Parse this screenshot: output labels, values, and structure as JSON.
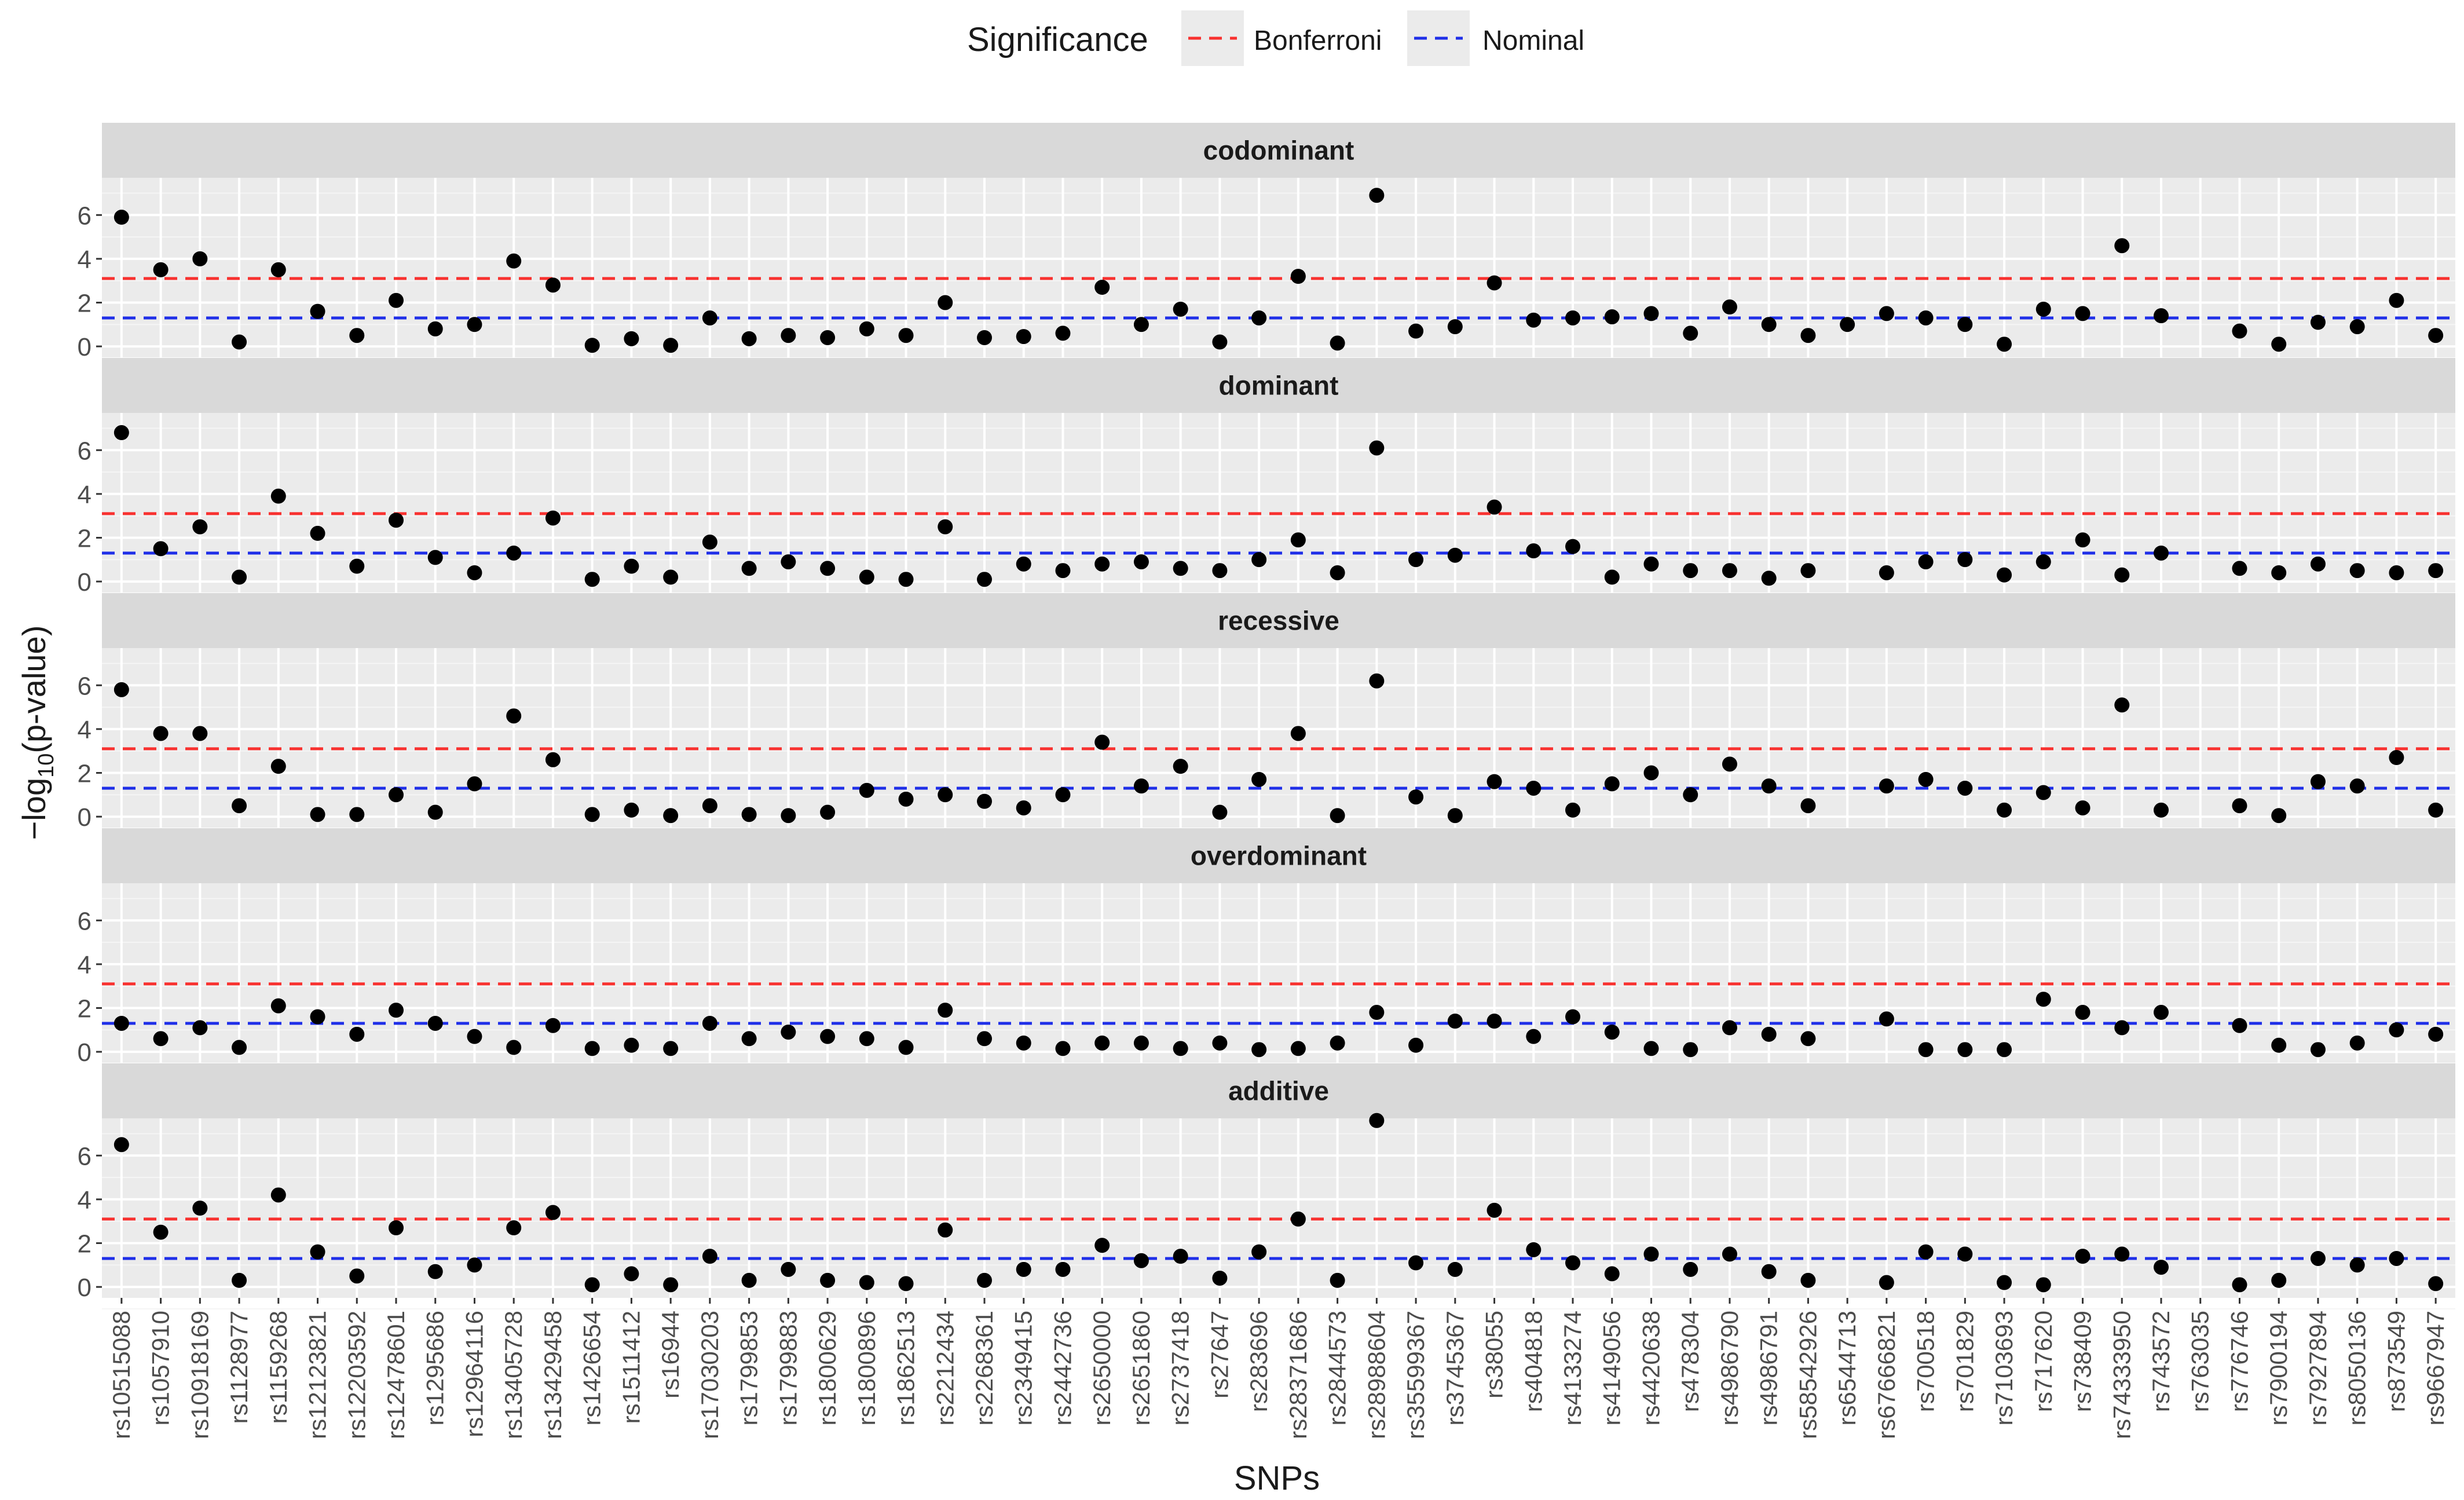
{
  "chart_data": {
    "type": "scatter",
    "xlabel": "SNPs",
    "ylabel_base": "−log",
    "ylabel_sub": "10",
    "ylabel_tail": "(p-value)",
    "legend": {
      "title": "Significance",
      "placement": "top",
      "items": [
        {
          "label": "Bonferroni",
          "color": "#F8312F",
          "style": "dashed"
        },
        {
          "label": "Nominal",
          "color": "#1F2FE8",
          "style": "dashed"
        }
      ]
    },
    "thresholds": {
      "bonferroni": 3.1,
      "nominal": 1.3
    },
    "ylim": [
      -0.5,
      7.7
    ],
    "yticks": [
      "0",
      "2",
      "4",
      "6"
    ],
    "ytick_values": [
      0,
      2,
      4,
      6
    ],
    "grid": true,
    "snps": [
      "rs10515088",
      "rs1057910",
      "rs10918169",
      "rs1128977",
      "rs1159268",
      "rs12123821",
      "rs12203592",
      "rs12478601",
      "rs1295686",
      "rs12964116",
      "rs13405728",
      "rs13429458",
      "rs1426654",
      "rs1511412",
      "rs16944",
      "rs17030203",
      "rs1799853",
      "rs1799883",
      "rs1800629",
      "rs1800896",
      "rs1862513",
      "rs2212434",
      "rs2268361",
      "rs2349415",
      "rs2442736",
      "rs2650000",
      "rs2651860",
      "rs2737418",
      "rs27647",
      "rs283696",
      "rs28371686",
      "rs2844573",
      "rs28988604",
      "rs35599367",
      "rs3745367",
      "rs38055",
      "rs404818",
      "rs4133274",
      "rs4149056",
      "rs4420638",
      "rs478304",
      "rs4986790",
      "rs4986791",
      "rs58542926",
      "rs6544713",
      "rs67666821",
      "rs700518",
      "rs701829",
      "rs7103693",
      "rs717620",
      "rs738409",
      "rs74333950",
      "rs743572",
      "rs763035",
      "rs776746",
      "rs7900194",
      "rs7927894",
      "rs8050136",
      "rs873549",
      "rs9667947"
    ],
    "panels": [
      {
        "name": "codominant",
        "values": [
          5.9,
          3.5,
          4.0,
          0.2,
          3.5,
          1.6,
          0.5,
          2.1,
          0.8,
          1.0,
          3.9,
          2.8,
          0.05,
          0.35,
          0.05,
          1.3,
          0.35,
          0.5,
          0.4,
          0.8,
          0.5,
          2.0,
          0.4,
          0.45,
          0.6,
          2.7,
          1.0,
          1.7,
          0.2,
          1.3,
          3.2,
          0.15,
          6.9,
          0.7,
          0.9,
          2.9,
          1.2,
          1.3,
          1.35,
          1.5,
          0.6,
          1.8,
          1.0,
          0.5,
          1.0,
          1.5,
          1.3,
          1.0,
          0.1,
          1.7,
          1.5,
          4.6,
          1.4,
          null,
          0.7,
          0.1,
          1.1,
          0.9,
          2.1,
          0.5
        ]
      },
      {
        "name": "dominant",
        "values": [
          6.8,
          1.5,
          2.5,
          0.2,
          3.9,
          2.2,
          0.7,
          2.8,
          1.1,
          0.4,
          1.3,
          2.9,
          0.1,
          0.7,
          0.2,
          1.8,
          0.6,
          0.9,
          0.6,
          0.2,
          0.1,
          2.5,
          0.1,
          0.8,
          0.5,
          0.8,
          0.9,
          0.6,
          0.5,
          1.0,
          1.9,
          0.4,
          6.1,
          1.0,
          1.2,
          3.4,
          1.4,
          1.6,
          0.2,
          0.8,
          0.5,
          0.5,
          0.15,
          0.5,
          null,
          0.4,
          0.9,
          1.0,
          0.3,
          0.9,
          1.9,
          0.3,
          1.3,
          null,
          0.6,
          0.4,
          0.8,
          0.5,
          0.4,
          0.5
        ]
      },
      {
        "name": "recessive",
        "values": [
          5.8,
          3.8,
          3.8,
          0.5,
          2.3,
          0.1,
          0.1,
          1.0,
          0.2,
          1.5,
          4.6,
          2.6,
          0.1,
          0.3,
          0.05,
          0.5,
          0.1,
          0.05,
          0.2,
          1.2,
          0.8,
          1.0,
          0.7,
          0.4,
          1.0,
          3.4,
          1.4,
          2.3,
          0.2,
          1.7,
          3.8,
          0.05,
          6.2,
          0.9,
          0.05,
          1.6,
          1.3,
          0.3,
          1.5,
          2.0,
          1.0,
          2.4,
          1.4,
          0.5,
          null,
          1.4,
          1.7,
          1.3,
          0.3,
          1.1,
          0.4,
          5.1,
          0.3,
          null,
          0.5,
          0.05,
          1.6,
          1.4,
          2.7,
          0.3
        ]
      },
      {
        "name": "overdominant",
        "values": [
          1.3,
          0.6,
          1.1,
          0.2,
          2.1,
          1.6,
          0.8,
          1.9,
          1.3,
          0.7,
          0.2,
          1.2,
          0.15,
          0.3,
          0.15,
          1.3,
          0.6,
          0.9,
          0.7,
          0.6,
          0.2,
          1.9,
          0.6,
          0.4,
          0.15,
          0.4,
          0.4,
          0.15,
          0.4,
          0.1,
          0.15,
          0.4,
          1.8,
          0.3,
          1.4,
          1.4,
          0.7,
          1.6,
          0.9,
          0.15,
          0.1,
          1.1,
          0.8,
          0.6,
          null,
          1.5,
          0.1,
          0.1,
          0.1,
          2.4,
          1.8,
          1.1,
          1.8,
          null,
          1.2,
          0.3,
          0.1,
          0.4,
          1.0,
          0.8
        ]
      },
      {
        "name": "additive",
        "values": [
          6.5,
          2.5,
          3.6,
          0.3,
          4.2,
          1.6,
          0.5,
          2.7,
          0.7,
          1.0,
          2.7,
          3.4,
          0.1,
          0.6,
          0.1,
          1.4,
          0.3,
          0.8,
          0.3,
          0.2,
          0.15,
          2.6,
          0.3,
          0.8,
          0.8,
          1.9,
          1.2,
          1.4,
          0.4,
          1.6,
          3.1,
          0.3,
          7.6,
          1.1,
          0.8,
          3.5,
          1.7,
          1.1,
          0.6,
          1.5,
          0.8,
          1.5,
          0.7,
          0.3,
          null,
          0.2,
          1.6,
          1.5,
          0.2,
          0.1,
          1.4,
          1.5,
          0.9,
          null,
          0.1,
          0.3,
          1.3,
          1.0,
          1.3,
          0.15
        ]
      }
    ]
  }
}
